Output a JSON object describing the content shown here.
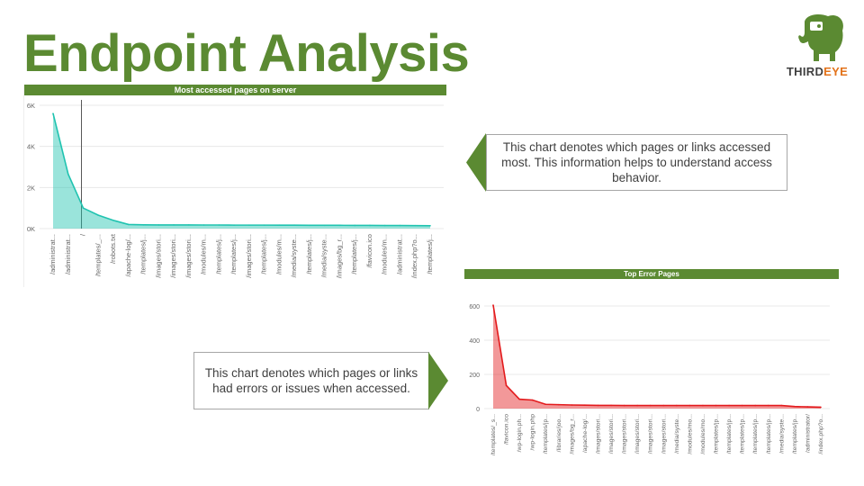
{
  "slide": {
    "title": "Endpoint Analysis",
    "logo_text_a": "THIRD",
    "logo_text_b": "EYE",
    "logo_icon": "elephant-icon",
    "colors": {
      "brand_green": "#5b8a32",
      "logo_orange": "#e3731b",
      "teal": "#20c3b0",
      "red": "#e31a1c"
    }
  },
  "callouts": {
    "top": "This chart denotes which pages or links accessed most. This information helps to understand access behavior.",
    "bottom": "This chart denotes which pages or links had errors or issues when accessed."
  },
  "chart_data": [
    {
      "type": "area",
      "title": "Most accessed pages on server",
      "ylim": [
        0,
        6000
      ],
      "yticks": [
        0,
        2000,
        4000,
        6000
      ],
      "ytick_labels": [
        "0K",
        "2K",
        "4K",
        "6K"
      ],
      "grid": true,
      "categories": [
        "/administrat...",
        "/administrat...",
        "/",
        "/templates/_...",
        "/robots.txt",
        "/apache-log/...",
        "/templates/j...",
        "/images/stori...",
        "/images/stori...",
        "/images/stori...",
        "/modules/m...",
        "/templates/j...",
        "/templates/j...",
        "/images/stori...",
        "/templates/j...",
        "/modules/m...",
        "/media/syste...",
        "/templates/j...",
        "/media/syste...",
        "/images/bg_r...",
        "/templates/j...",
        "/favicon.ico",
        "/modules/m...",
        "/administrat...",
        "/index.php?o...",
        "/templates/j..."
      ],
      "values": [
        5600,
        2650,
        1000,
        650,
        400,
        200,
        185,
        180,
        180,
        180,
        175,
        175,
        170,
        170,
        170,
        165,
        165,
        160,
        160,
        160,
        155,
        155,
        150,
        150,
        145,
        140
      ],
      "color": "#20c3b0"
    },
    {
      "type": "area",
      "title": "Top Error Pages",
      "ylim": [
        0,
        600
      ],
      "yticks": [
        0,
        200,
        400,
        600
      ],
      "ytick_labels": [
        "0",
        "200",
        "400",
        "600"
      ],
      "grid": true,
      "categories": [
        "/templates/_s...",
        "/favicon.ico",
        "/wp-login.ph...",
        "/wp-login.php",
        "/templates/jp...",
        "/libraries/joo...",
        "/images/bg_r...",
        "/apache-log/...",
        "/images/stori...",
        "/images/stori...",
        "/images/stori...",
        "/images/stori...",
        "/images/stori...",
        "/images/stori...",
        "/media/syste...",
        "/modules/mo...",
        "/modules/mo...",
        "/templates/jp...",
        "/templates/jp...",
        "/templates/jp...",
        "/templates/jp...",
        "/templates/jp...",
        "/media/syste...",
        "/templates/jp...",
        "/administrator/",
        "/index.php?o..."
      ],
      "values": [
        605,
        135,
        55,
        50,
        25,
        23,
        21,
        20,
        19,
        19,
        18,
        18,
        18,
        18,
        18,
        18,
        18,
        18,
        18,
        18,
        18,
        18,
        18,
        12,
        10,
        8
      ],
      "color": "#e31a1c"
    }
  ]
}
